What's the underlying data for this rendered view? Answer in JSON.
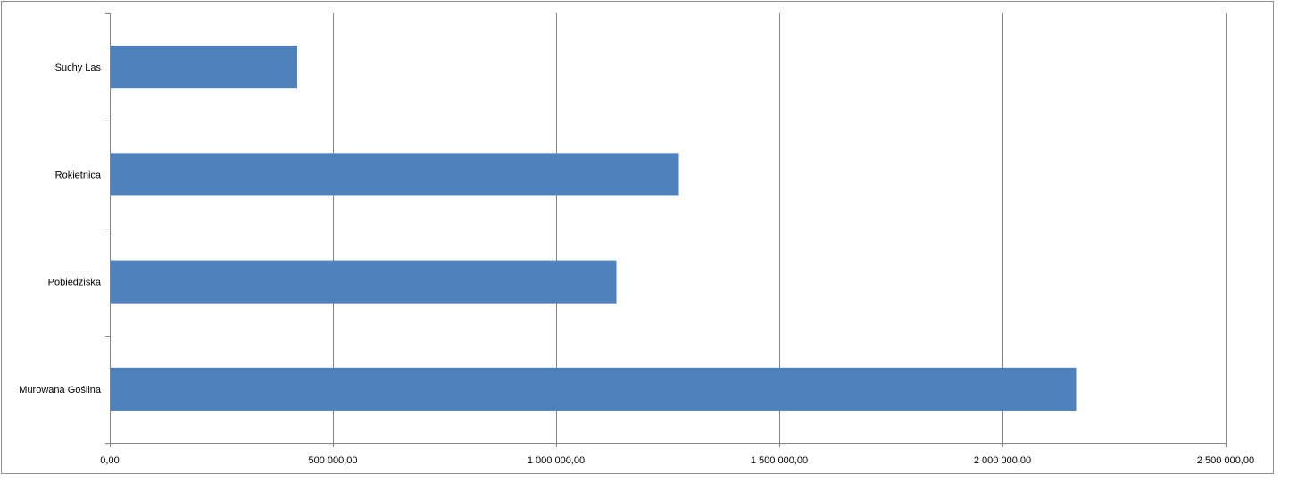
{
  "chart_data": {
    "type": "bar",
    "orientation": "horizontal",
    "title": "",
    "xlabel": "",
    "ylabel": "",
    "categories": [
      "Suchy Las",
      "Rokietnica",
      "Pobiedziska",
      "Murowana Goślina"
    ],
    "values": [
      420000,
      1275000,
      1135000,
      2165000
    ],
    "xlim": [
      0,
      2500000
    ],
    "x_ticks": [
      0,
      500000,
      1000000,
      1500000,
      2000000,
      2500000
    ],
    "x_tick_labels": [
      "0,00",
      "500 000,00",
      "1 000 000,00",
      "1 500 000,00",
      "2 000 000,00",
      "2 500 000,00"
    ],
    "grid": "vertical-major",
    "legend": "none",
    "bar_color": "#4f81bd",
    "grid_color": "#868686"
  }
}
